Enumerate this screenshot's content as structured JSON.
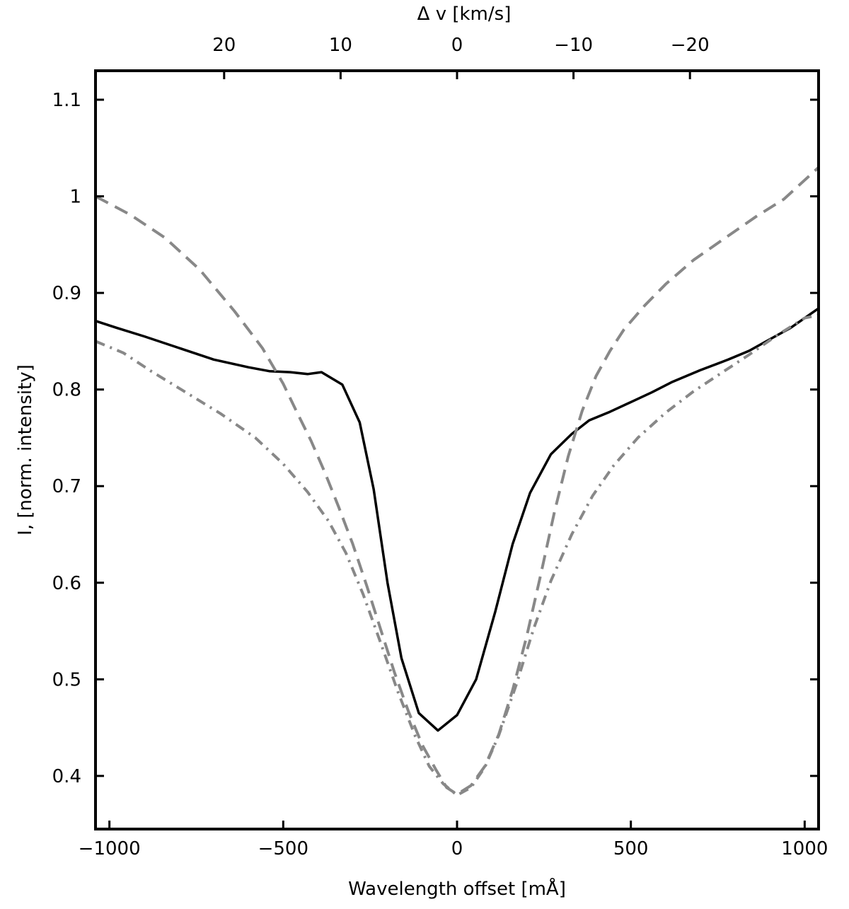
{
  "chart_data": {
    "type": "line",
    "xlabel": "Wavelength offset [mÅ]",
    "ylabel": "I, [norm. intensity]",
    "top_axis_label": "Δ v [km/s]",
    "xlim": [
      -1040,
      1040
    ],
    "ylim": [
      0.345,
      1.13
    ],
    "x_ticks": [
      -1000,
      -500,
      0,
      500,
      1000
    ],
    "x_tick_labels": [
      "−1000",
      "−500",
      "0",
      "500",
      "1000"
    ],
    "y_ticks": [
      0.4,
      0.5,
      0.6,
      0.7,
      0.8,
      0.9,
      1.0,
      1.1
    ],
    "y_tick_labels": [
      "0.4",
      "0.5",
      "0.6",
      "0.7",
      "0.8",
      "0.9",
      "1",
      "1.1"
    ],
    "top_ticks": [
      20,
      10,
      0,
      -10,
      -20
    ],
    "top_tick_labels": [
      "20",
      "10",
      "0",
      "−10",
      "−20"
    ],
    "top_tick_positions_ma": [
      -670,
      -335,
      0,
      335,
      670
    ],
    "grid": false,
    "series": [
      {
        "style": "solid",
        "color": "#000000",
        "x": [
          -1040,
          -980,
          -900,
          -800,
          -700,
          -600,
          -540,
          -480,
          -430,
          -390,
          -330,
          -280,
          -240,
          -200,
          -160,
          -110,
          -55,
          0,
          55,
          110,
          160,
          210,
          270,
          330,
          380,
          440,
          500,
          560,
          620,
          700,
          780,
          840,
          900,
          960,
          1040
        ],
        "y": [
          0.871,
          0.864,
          0.855,
          0.843,
          0.831,
          0.823,
          0.819,
          0.818,
          0.816,
          0.818,
          0.805,
          0.766,
          0.697,
          0.6,
          0.522,
          0.465,
          0.447,
          0.463,
          0.5,
          0.57,
          0.64,
          0.693,
          0.733,
          0.754,
          0.768,
          0.777,
          0.787,
          0.797,
          0.808,
          0.82,
          0.831,
          0.84,
          0.852,
          0.864,
          0.884
        ]
      },
      {
        "style": "dashed",
        "color": "#888888",
        "x": [
          -1040,
          -940,
          -840,
          -740,
          -640,
          -560,
          -500,
          -460,
          -420,
          -380,
          -340,
          -300,
          -260,
          -220,
          -180,
          -140,
          -100,
          -60,
          -30,
          0,
          40,
          80,
          120,
          160,
          200,
          240,
          280,
          320,
          360,
          400,
          440,
          480,
          540,
          600,
          680,
          760,
          860,
          940,
          1040
        ],
        "y": [
          1.0,
          0.981,
          0.957,
          0.924,
          0.881,
          0.843,
          0.806,
          0.776,
          0.747,
          0.714,
          0.678,
          0.64,
          0.597,
          0.552,
          0.507,
          0.467,
          0.432,
          0.406,
          0.388,
          0.381,
          0.39,
          0.41,
          0.443,
          0.489,
          0.544,
          0.607,
          0.673,
          0.731,
          0.778,
          0.814,
          0.84,
          0.862,
          0.887,
          0.909,
          0.934,
          0.954,
          0.979,
          0.997,
          1.03
        ]
      },
      {
        "style": "dashdot",
        "color": "#888888",
        "x": [
          -1040,
          -960,
          -880,
          -780,
          -680,
          -580,
          -500,
          -430,
          -370,
          -320,
          -270,
          -220,
          -170,
          -120,
          -80,
          -40,
          0,
          40,
          80,
          120,
          170,
          220,
          270,
          330,
          390,
          450,
          520,
          600,
          680,
          760,
          840,
          920,
          1000,
          1040
        ],
        "y": [
          0.85,
          0.838,
          0.819,
          0.797,
          0.775,
          0.75,
          0.723,
          0.694,
          0.664,
          0.631,
          0.588,
          0.538,
          0.487,
          0.441,
          0.41,
          0.392,
          0.38,
          0.388,
          0.409,
          0.442,
          0.494,
          0.552,
          0.602,
          0.65,
          0.69,
          0.721,
          0.75,
          0.776,
          0.798,
          0.817,
          0.836,
          0.856,
          0.874,
          0.877
        ]
      }
    ]
  }
}
